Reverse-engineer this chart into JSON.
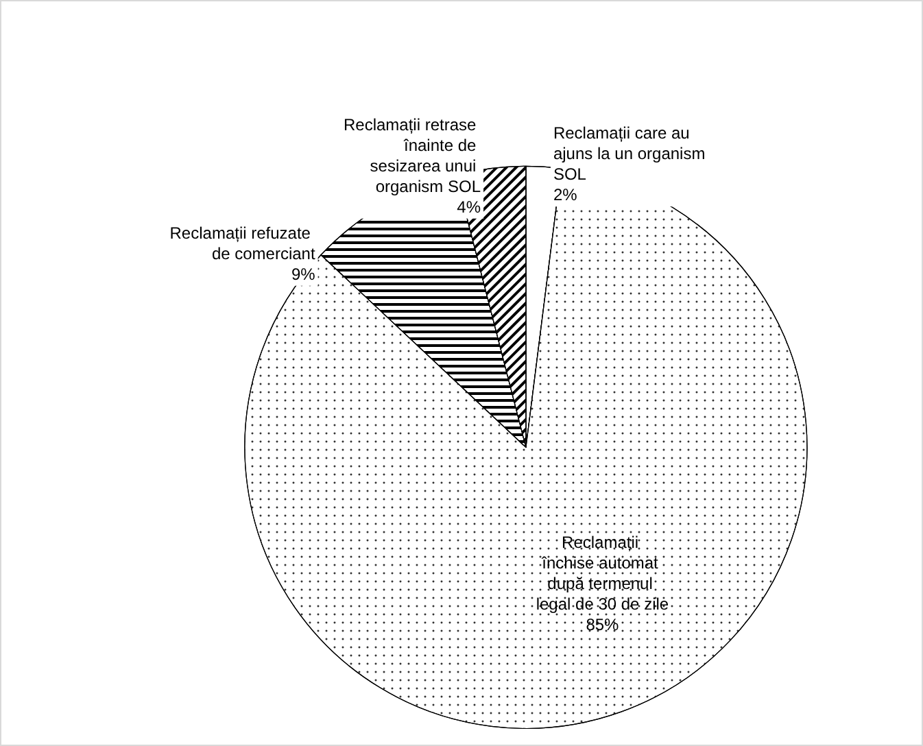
{
  "chart_data": {
    "type": "pie",
    "categories": [
      "Reclamații care au ajuns la un organism SOL",
      "Reclamații închise automat după termenul legal de 30 de zile",
      "Reclamații refuzate de comerciant",
      "Reclamații retrase înainte de sesizarea unui organism SOL"
    ],
    "values": [
      2,
      85,
      9,
      4
    ],
    "value_labels": [
      "2%",
      "85%",
      "9%",
      "4%"
    ],
    "colors": [
      "#ffffff",
      "#ffffff",
      "#ffffff",
      "#ffffff"
    ],
    "legend": false
  }
}
